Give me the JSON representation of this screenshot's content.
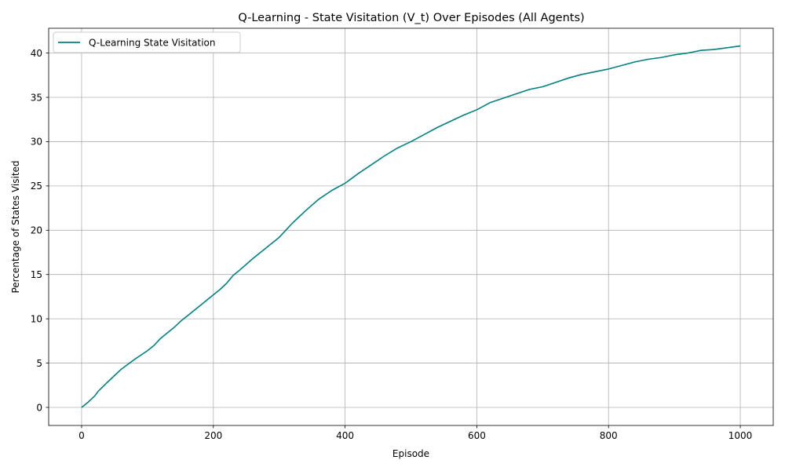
{
  "chart_data": {
    "type": "line",
    "title": "Q-Learning - State Visitation (V_t) Over Episodes (All Agents)",
    "xlabel": "Episode",
    "ylabel": "Percentage of States Visited",
    "xlim": [
      -50,
      1050
    ],
    "ylim": [
      -2.04,
      42.8
    ],
    "xticks": [
      0,
      200,
      400,
      600,
      800,
      1000
    ],
    "yticks": [
      0,
      5,
      10,
      15,
      20,
      25,
      30,
      35,
      40
    ],
    "grid": true,
    "legend_position": "top-left",
    "series": [
      {
        "name": "Q-Learning State Visitation",
        "color": "#008080",
        "x": [
          0,
          10,
          20,
          25,
          40,
          50,
          60,
          80,
          100,
          110,
          120,
          140,
          150,
          160,
          180,
          200,
          210,
          220,
          230,
          240,
          260,
          280,
          300,
          310,
          320,
          340,
          360,
          380,
          400,
          420,
          440,
          460,
          480,
          500,
          520,
          540,
          560,
          580,
          600,
          610,
          615,
          620,
          640,
          660,
          680,
          700,
          720,
          740,
          760,
          780,
          800,
          820,
          840,
          860,
          880,
          900,
          910,
          920,
          940,
          960,
          980,
          1000
        ],
        "y": [
          0.0,
          0.6,
          1.3,
          1.8,
          2.9,
          3.6,
          4.3,
          5.4,
          6.4,
          7.0,
          7.8,
          9.0,
          9.7,
          10.3,
          11.5,
          12.7,
          13.3,
          14.0,
          14.9,
          15.5,
          16.8,
          18.0,
          19.2,
          20.0,
          20.8,
          22.2,
          23.5,
          24.5,
          25.3,
          26.4,
          27.4,
          28.4,
          29.3,
          30.0,
          30.8,
          31.6,
          32.3,
          33.0,
          33.6,
          34.0,
          34.2,
          34.4,
          34.9,
          35.4,
          35.9,
          36.2,
          36.7,
          37.2,
          37.6,
          37.9,
          38.2,
          38.6,
          39.0,
          39.3,
          39.5,
          39.8,
          39.9,
          40.0,
          40.3,
          40.4,
          40.6,
          40.8
        ]
      }
    ]
  }
}
